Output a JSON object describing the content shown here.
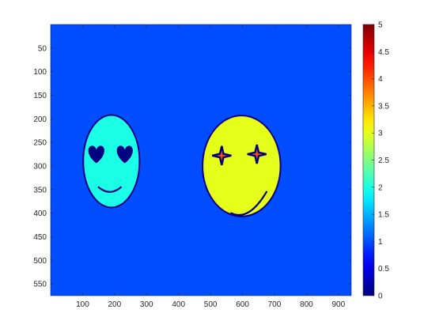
{
  "chart_data": {
    "type": "heatmap",
    "colormap": "jet",
    "clim": [
      0,
      5
    ],
    "xlim": [
      0,
      940
    ],
    "ylim": [
      575,
      0
    ],
    "y_reversed": true,
    "background_value": 1,
    "x_ticks": [
      100,
      200,
      300,
      400,
      500,
      600,
      700,
      800,
      900
    ],
    "y_ticks": [
      50,
      100,
      150,
      200,
      250,
      300,
      350,
      400,
      450,
      500,
      550
    ],
    "colorbar_ticks": [
      "0",
      "0.5",
      "1",
      "1.5",
      "2",
      "2.5",
      "3",
      "3.5",
      "4",
      "4.5",
      "5"
    ],
    "colorbar_tick_values": [
      0,
      0.5,
      1,
      1.5,
      2,
      2.5,
      3,
      3.5,
      4,
      4.5,
      5
    ],
    "regions": [
      {
        "name": "left face",
        "shape": "ellipse",
        "center": [
          190,
          290
        ],
        "radii": [
          88,
          98
        ],
        "value": 2,
        "outline_value": 0
      },
      {
        "name": "left eye left (heart)",
        "shape": "heart",
        "center": [
          143,
          273
        ],
        "value": 0
      },
      {
        "name": "left eye right (heart)",
        "shape": "heart",
        "center": [
          232,
          273
        ],
        "value": 0
      },
      {
        "name": "left smile",
        "shape": "curve",
        "points": [
          [
            150,
            345
          ],
          [
            185,
            365
          ],
          [
            220,
            345
          ]
        ],
        "value": 0
      },
      {
        "name": "right face",
        "shape": "ellipse",
        "center": [
          597,
          300
        ],
        "radii": [
          122,
          107
        ],
        "value": 3,
        "outline_value": 0
      },
      {
        "name": "right eye left (star)",
        "shape": "star",
        "center": [
          535,
          278
        ],
        "value": 4,
        "outline_value": 0
      },
      {
        "name": "right eye right (star)",
        "shape": "star",
        "center": [
          645,
          275
        ],
        "value": 4,
        "outline_value": 0
      },
      {
        "name": "right smile",
        "shape": "curve",
        "points": [
          [
            565,
            400
          ],
          [
            620,
            418
          ],
          [
            675,
            355
          ]
        ],
        "value": 0
      }
    ]
  }
}
